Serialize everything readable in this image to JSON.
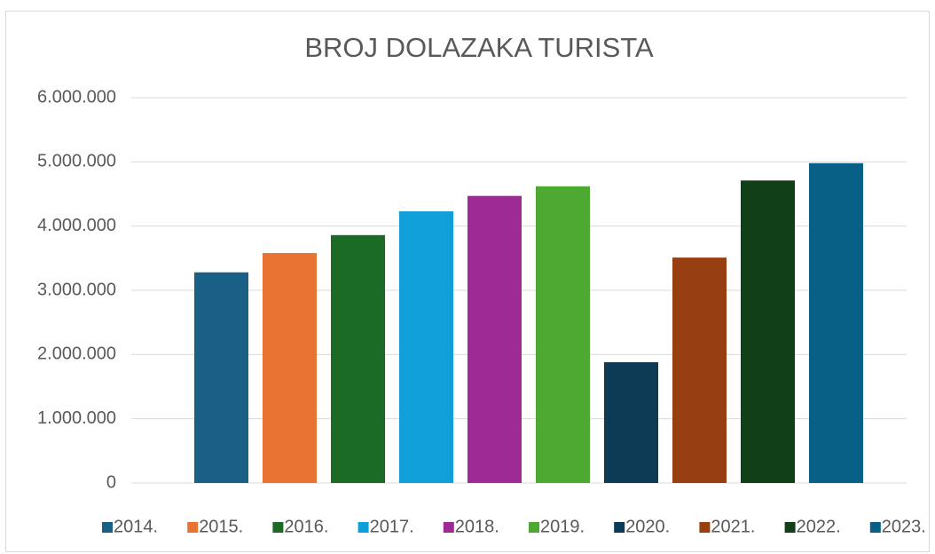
{
  "chart_data": {
    "type": "bar",
    "title": "BROJ DOLAZAKA TURISTA",
    "series": [
      {
        "name": "2014.",
        "color": "#1a5f86",
        "values": [
          3280000
        ]
      },
      {
        "name": "2015.",
        "color": "#e97333",
        "values": [
          3580000
        ]
      },
      {
        "name": "2016.",
        "color": "#1b6b27",
        "values": [
          3860000
        ]
      },
      {
        "name": "2017.",
        "color": "#119fd9",
        "values": [
          4230000
        ]
      },
      {
        "name": "2018.",
        "color": "#9e2a96",
        "values": [
          4470000
        ]
      },
      {
        "name": "2019.",
        "color": "#4ea932",
        "values": [
          4620000
        ]
      },
      {
        "name": "2020.",
        "color": "#0d3a54",
        "values": [
          1880000
        ]
      },
      {
        "name": "2021.",
        "color": "#983f11",
        "values": [
          3510000
        ]
      },
      {
        "name": "2022.",
        "color": "#113f17",
        "values": [
          4710000
        ]
      },
      {
        "name": "2023.",
        "color": "#086087",
        "values": [
          4980000
        ]
      }
    ],
    "ylim": [
      0,
      6000000
    ],
    "yticks": [
      0,
      {
        "value": 1000000,
        "label": "1.000.000"
      },
      {
        "value": 2000000,
        "label": "2.000.000"
      },
      {
        "value": 3000000,
        "label": "3.000.000"
      },
      {
        "value": 4000000,
        "label": "4.000.000"
      },
      {
        "value": 5000000,
        "label": "5.000.000"
      },
      {
        "value": 6000000,
        "label": "6.000.000"
      }
    ],
    "grid": true,
    "legend": "bottom"
  }
}
